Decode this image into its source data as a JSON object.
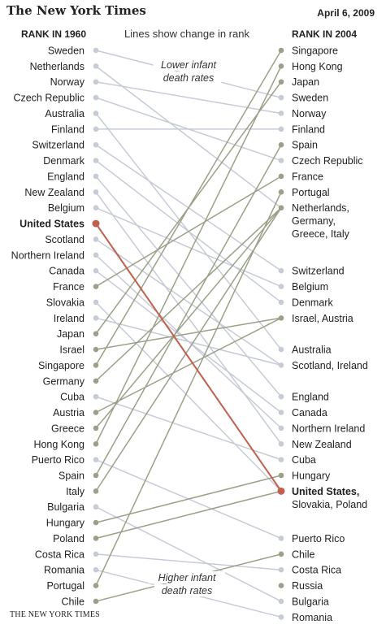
{
  "header": {
    "masthead": "The New York Times",
    "date": "April 6, 2009",
    "left_heading": "RANK IN 1960",
    "right_heading": "RANK IN 2004",
    "subtitle": "Lines show change in rank",
    "footer": "THE NEW YORK TIMES"
  },
  "chart_data": {
    "type": "slope",
    "title": "",
    "left_axis_label": "RANK IN 1960",
    "right_axis_label": "RANK IN 2004",
    "subtitle": "Lines show change in rank",
    "annotations": [
      "Lower infant",
      "death rates",
      "Higher infant",
      "death rates"
    ],
    "colors": {
      "improved": "#9ba08a",
      "declined": "#c7cbd6",
      "united_states": "#c0604e"
    },
    "rank_1960": [
      "Sweden",
      "Netherlands",
      "Norway",
      "Czech Republic",
      "Australia",
      "Finland",
      "Switzerland",
      "Denmark",
      "England",
      "New Zealand",
      "Belgium",
      "United States",
      "Scotland",
      "Northern Ireland",
      "Canada",
      "France",
      "Slovakia",
      "Ireland",
      "Japan",
      "Israel",
      "Singapore",
      "Germany",
      "Cuba",
      "Austria",
      "Greece",
      "Hong Kong",
      "Puerto Rico",
      "Spain",
      "Italy",
      "Bulgaria",
      "Hungary",
      "Poland",
      "Costa Rica",
      "Romania",
      "Portugal",
      "Chile"
    ],
    "rank_2004": [
      {
        "label": "Singapore",
        "rank": 1
      },
      {
        "label": "Hong Kong",
        "rank": 2
      },
      {
        "label": "Japan",
        "rank": 3
      },
      {
        "label": "Sweden",
        "rank": 4
      },
      {
        "label": "Norway",
        "rank": 5
      },
      {
        "label": "Finland",
        "rank": 6
      },
      {
        "label": "Spain",
        "rank": 7
      },
      {
        "label": "Czech Republic",
        "rank": 8
      },
      {
        "label": "France",
        "rank": 9
      },
      {
        "label": "Portugal",
        "rank": 10
      },
      {
        "label": "Netherlands,",
        "label2": "Germany,",
        "label3": "Greece, Italy",
        "rank": 11
      },
      {
        "label": "Switzerland",
        "rank": 15
      },
      {
        "label": "Belgium",
        "rank": 16
      },
      {
        "label": "Denmark",
        "rank": 17
      },
      {
        "label": "Israel, Austria",
        "rank": 18
      },
      {
        "label": "Australia",
        "rank": 20
      },
      {
        "label": "Scotland, Ireland",
        "rank": 21
      },
      {
        "label": "England",
        "rank": 23
      },
      {
        "label": "Canada",
        "rank": 24
      },
      {
        "label": "Northern Ireland",
        "rank": 25
      },
      {
        "label": "New Zealand",
        "rank": 26
      },
      {
        "label": "Cuba",
        "rank": 27
      },
      {
        "label": "Hungary",
        "rank": 28
      },
      {
        "label": "United States,",
        "label2": "Slovakia, Poland",
        "rank": 29,
        "highlight": true
      },
      {
        "label": "Puerto Rico",
        "rank": 32
      },
      {
        "label": "Chile",
        "rank": 33
      },
      {
        "label": "Costa Rica",
        "rank": 34
      },
      {
        "label": "Russia",
        "rank": 35
      },
      {
        "label": "Bulgaria",
        "rank": 36
      },
      {
        "label": "Romania",
        "rank": 37
      }
    ],
    "lines": [
      {
        "country": "Sweden",
        "from": 1,
        "to": 4
      },
      {
        "country": "Netherlands",
        "from": 2,
        "to": 11
      },
      {
        "country": "Norway",
        "from": 3,
        "to": 5
      },
      {
        "country": "Czech Republic",
        "from": 4,
        "to": 8
      },
      {
        "country": "Australia",
        "from": 5,
        "to": 20
      },
      {
        "country": "Finland",
        "from": 6,
        "to": 6
      },
      {
        "country": "Switzerland",
        "from": 7,
        "to": 15
      },
      {
        "country": "Denmark",
        "from": 8,
        "to": 17
      },
      {
        "country": "England",
        "from": 9,
        "to": 23
      },
      {
        "country": "New Zealand",
        "from": 10,
        "to": 26
      },
      {
        "country": "Belgium",
        "from": 11,
        "to": 16
      },
      {
        "country": "United States",
        "from": 12,
        "to": 29
      },
      {
        "country": "Scotland",
        "from": 13,
        "to": 21
      },
      {
        "country": "Northern Ireland",
        "from": 14,
        "to": 25
      },
      {
        "country": "Canada",
        "from": 15,
        "to": 24
      },
      {
        "country": "France",
        "from": 16,
        "to": 9
      },
      {
        "country": "Slovakia",
        "from": 17,
        "to": 29
      },
      {
        "country": "Ireland",
        "from": 18,
        "to": 21
      },
      {
        "country": "Japan",
        "from": 19,
        "to": 3
      },
      {
        "country": "Israel",
        "from": 20,
        "to": 18
      },
      {
        "country": "Singapore",
        "from": 21,
        "to": 1
      },
      {
        "country": "Germany",
        "from": 22,
        "to": 11
      },
      {
        "country": "Cuba",
        "from": 23,
        "to": 27
      },
      {
        "country": "Austria",
        "from": 24,
        "to": 18
      },
      {
        "country": "Greece",
        "from": 25,
        "to": 11
      },
      {
        "country": "Hong Kong",
        "from": 26,
        "to": 2
      },
      {
        "country": "Puerto Rico",
        "from": 27,
        "to": 32
      },
      {
        "country": "Spain",
        "from": 28,
        "to": 7
      },
      {
        "country": "Italy",
        "from": 29,
        "to": 11
      },
      {
        "country": "Bulgaria",
        "from": 30,
        "to": 36
      },
      {
        "country": "Hungary",
        "from": 31,
        "to": 28
      },
      {
        "country": "Poland",
        "from": 32,
        "to": 29
      },
      {
        "country": "Costa Rica",
        "from": 33,
        "to": 34
      },
      {
        "country": "Romania",
        "from": 34,
        "to": 37
      },
      {
        "country": "Portugal",
        "from": 35,
        "to": 10
      },
      {
        "country": "Chile",
        "from": 36,
        "to": 33
      }
    ]
  }
}
